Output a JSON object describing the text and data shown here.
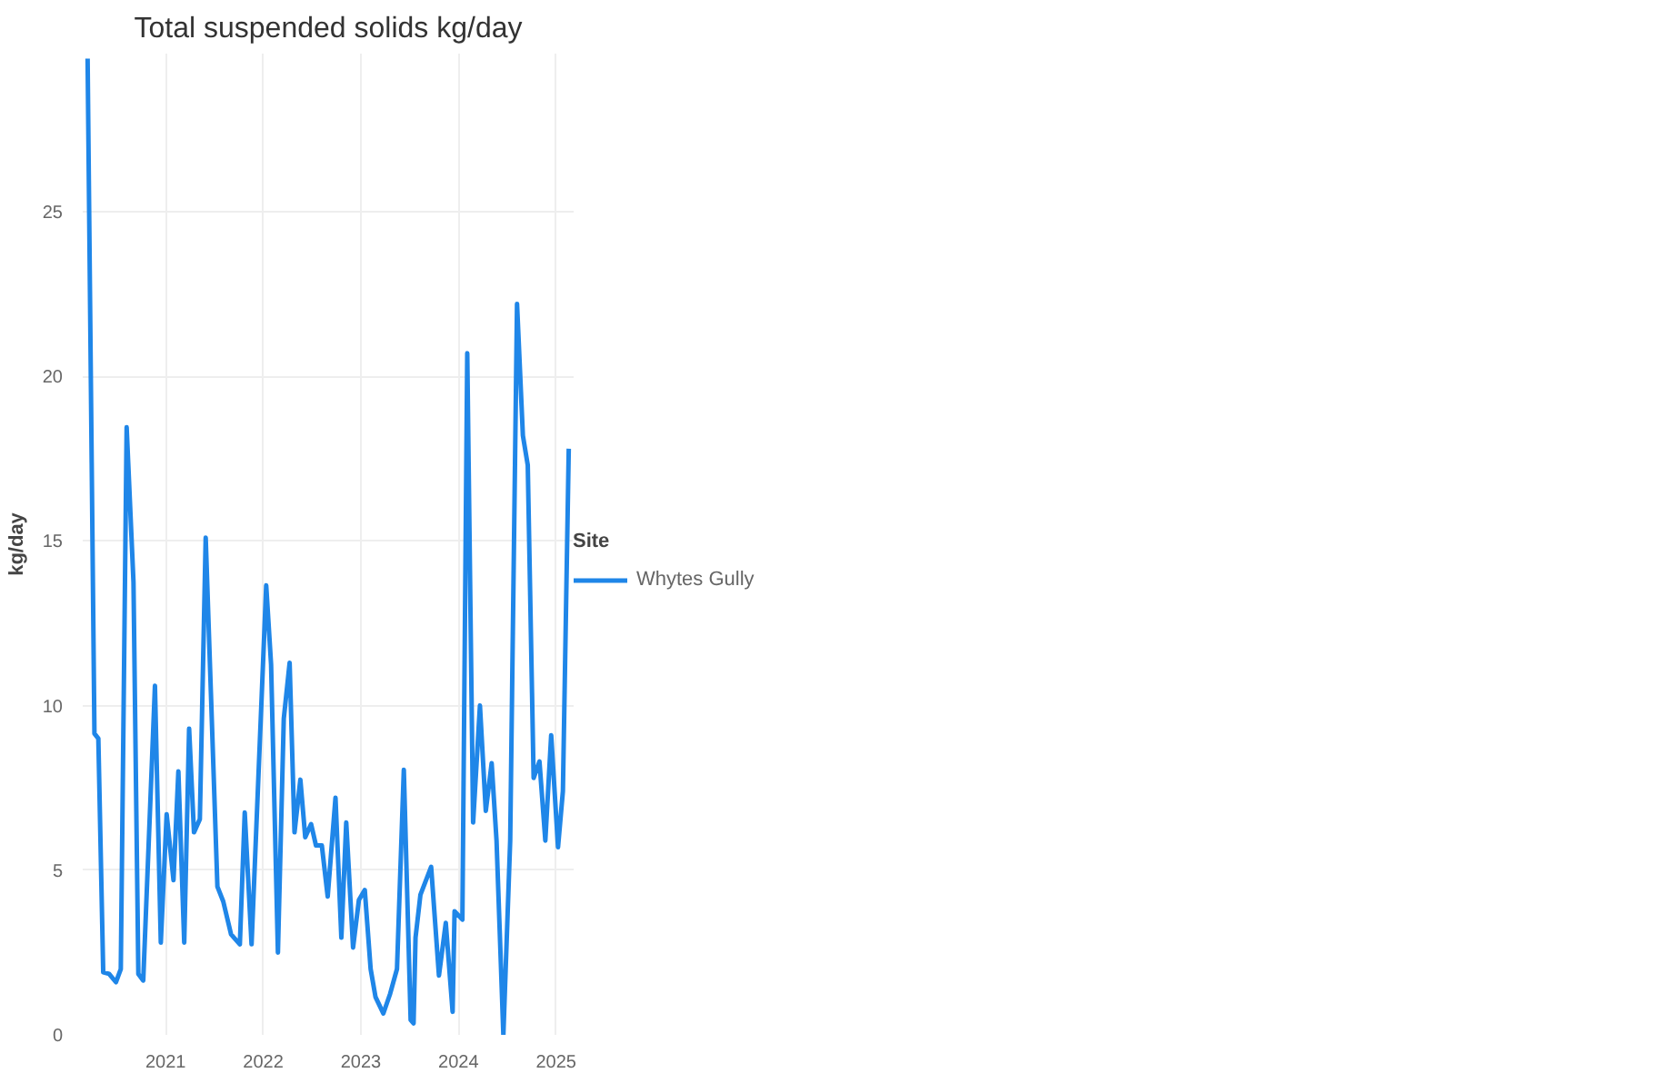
{
  "chart_data": {
    "type": "line",
    "title": "Total suspended solids kg/day",
    "ylabel": "kg/day",
    "legend_title": "Site",
    "x": [
      2020.2,
      2020.27,
      2020.31,
      2020.36,
      2020.42,
      2020.49,
      2020.54,
      2020.6,
      2020.67,
      2020.72,
      2020.77,
      2020.89,
      2020.95,
      2021.01,
      2021.08,
      2021.13,
      2021.19,
      2021.24,
      2021.29,
      2021.35,
      2021.41,
      2021.53,
      2021.59,
      2021.67,
      2021.76,
      2021.81,
      2021.88,
      2022.03,
      2022.08,
      2022.15,
      2022.21,
      2022.27,
      2022.32,
      2022.38,
      2022.43,
      2022.49,
      2022.54,
      2022.6,
      2022.66,
      2022.74,
      2022.8,
      2022.85,
      2022.92,
      2022.98,
      2023.04,
      2023.1,
      2023.15,
      2023.23,
      2023.3,
      2023.37,
      2023.44,
      2023.51,
      2023.54,
      2023.56,
      2023.61,
      2023.72,
      2023.8,
      2023.87,
      2023.94,
      2023.96,
      2024.04,
      2024.09,
      2024.15,
      2024.22,
      2024.28,
      2024.34,
      2024.39,
      2024.46,
      2024.53,
      2024.6,
      2024.66,
      2024.71,
      2024.77,
      2024.83,
      2024.89,
      2024.95,
      2025.02,
      2025.07,
      2025.13
    ],
    "series": [
      {
        "name": "Whytes Gully",
        "color": "#1f86e8",
        "values": [
          29.65,
          9.15,
          9.0,
          1.9,
          1.85,
          1.6,
          2.0,
          18.45,
          13.75,
          1.85,
          1.65,
          10.6,
          2.8,
          6.7,
          4.7,
          8.0,
          2.8,
          9.3,
          6.15,
          6.55,
          15.1,
          4.5,
          4.05,
          3.05,
          2.75,
          6.75,
          2.75,
          13.65,
          11.25,
          2.5,
          9.6,
          11.3,
          6.15,
          7.75,
          6.0,
          6.4,
          5.75,
          5.75,
          4.2,
          7.2,
          2.95,
          6.45,
          2.65,
          4.1,
          4.4,
          2.0,
          1.15,
          0.65,
          1.25,
          2.0,
          8.05,
          0.45,
          0.35,
          2.95,
          4.25,
          5.1,
          1.8,
          3.4,
          0.7,
          3.75,
          3.5,
          20.7,
          6.45,
          10.0,
          6.8,
          8.25,
          5.9,
          0.0,
          5.9,
          22.2,
          18.2,
          17.3,
          7.8,
          8.3,
          5.9,
          9.1,
          5.7,
          7.4,
          17.8
        ]
      }
    ],
    "xlim": [
      2020.15,
      2025.18
    ],
    "xticks": [
      2021,
      2022,
      2023,
      2024,
      2025
    ],
    "ylim": [
      0,
      29.8
    ],
    "yticks": [
      0,
      5,
      10,
      15,
      20,
      25
    ],
    "grid": true,
    "legend": "right",
    "line_style": "solid",
    "marker": "none"
  }
}
